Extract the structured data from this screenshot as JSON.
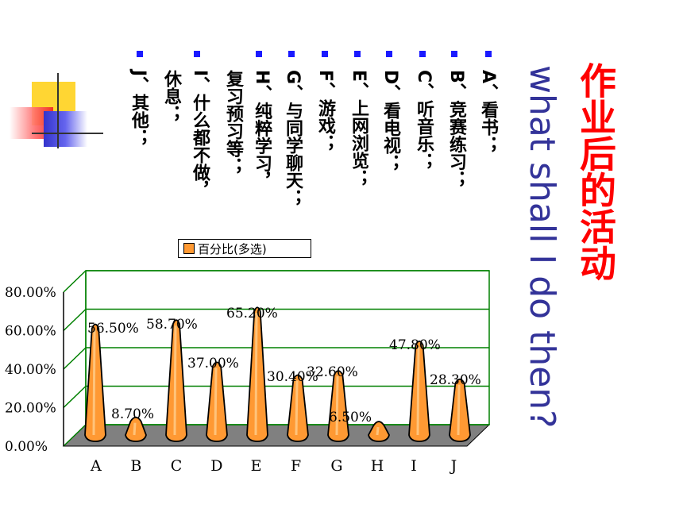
{
  "title": "作业后的活动",
  "subtitle": "what shall I do then?",
  "options": [
    {
      "text": "A、看书；"
    },
    {
      "text": "B、竞赛练习；"
    },
    {
      "text": "C、听音乐；"
    },
    {
      "text": "D、看电视；"
    },
    {
      "text": "E、上网浏览；"
    },
    {
      "text": "F、游戏；"
    },
    {
      "text": "G、与同学聊天；"
    },
    {
      "text": "H、纯粹学习，"
    },
    {
      "text": "复习预习等；"
    },
    {
      "text": "I、什么都不做，"
    },
    {
      "text": "休息；"
    },
    {
      "text": "J、其他；"
    }
  ],
  "colors": {
    "title": "#ff0000",
    "subtitle": "#333399",
    "bullet": "#1a1aff",
    "gridline": "#008000",
    "bar": "#ff9933",
    "floor": "#808080"
  },
  "chart_data": {
    "type": "bar",
    "categories": [
      "A",
      "B",
      "C",
      "D",
      "E",
      "F",
      "G",
      "H",
      "I",
      "J"
    ],
    "series": [
      {
        "name": "百分比(多选)",
        "values": [
          56.5,
          8.7,
          58.7,
          37.0,
          65.2,
          30.4,
          32.6,
          6.5,
          47.8,
          28.3
        ]
      }
    ],
    "data_labels": [
      "56.50%",
      "8.70%",
      "58.70%",
      "37.00%",
      "65.20%",
      "30.40%",
      "32.60%",
      "6.50%",
      "47.80%",
      "28.30%"
    ],
    "yticks": [
      "0.00%",
      "20.00%",
      "40.00%",
      "60.00%",
      "80.00%"
    ],
    "ylim": [
      0,
      80
    ],
    "legend_label": "百分比(多选)",
    "legend": "top-left",
    "grid": true,
    "style": "3d-cone"
  }
}
